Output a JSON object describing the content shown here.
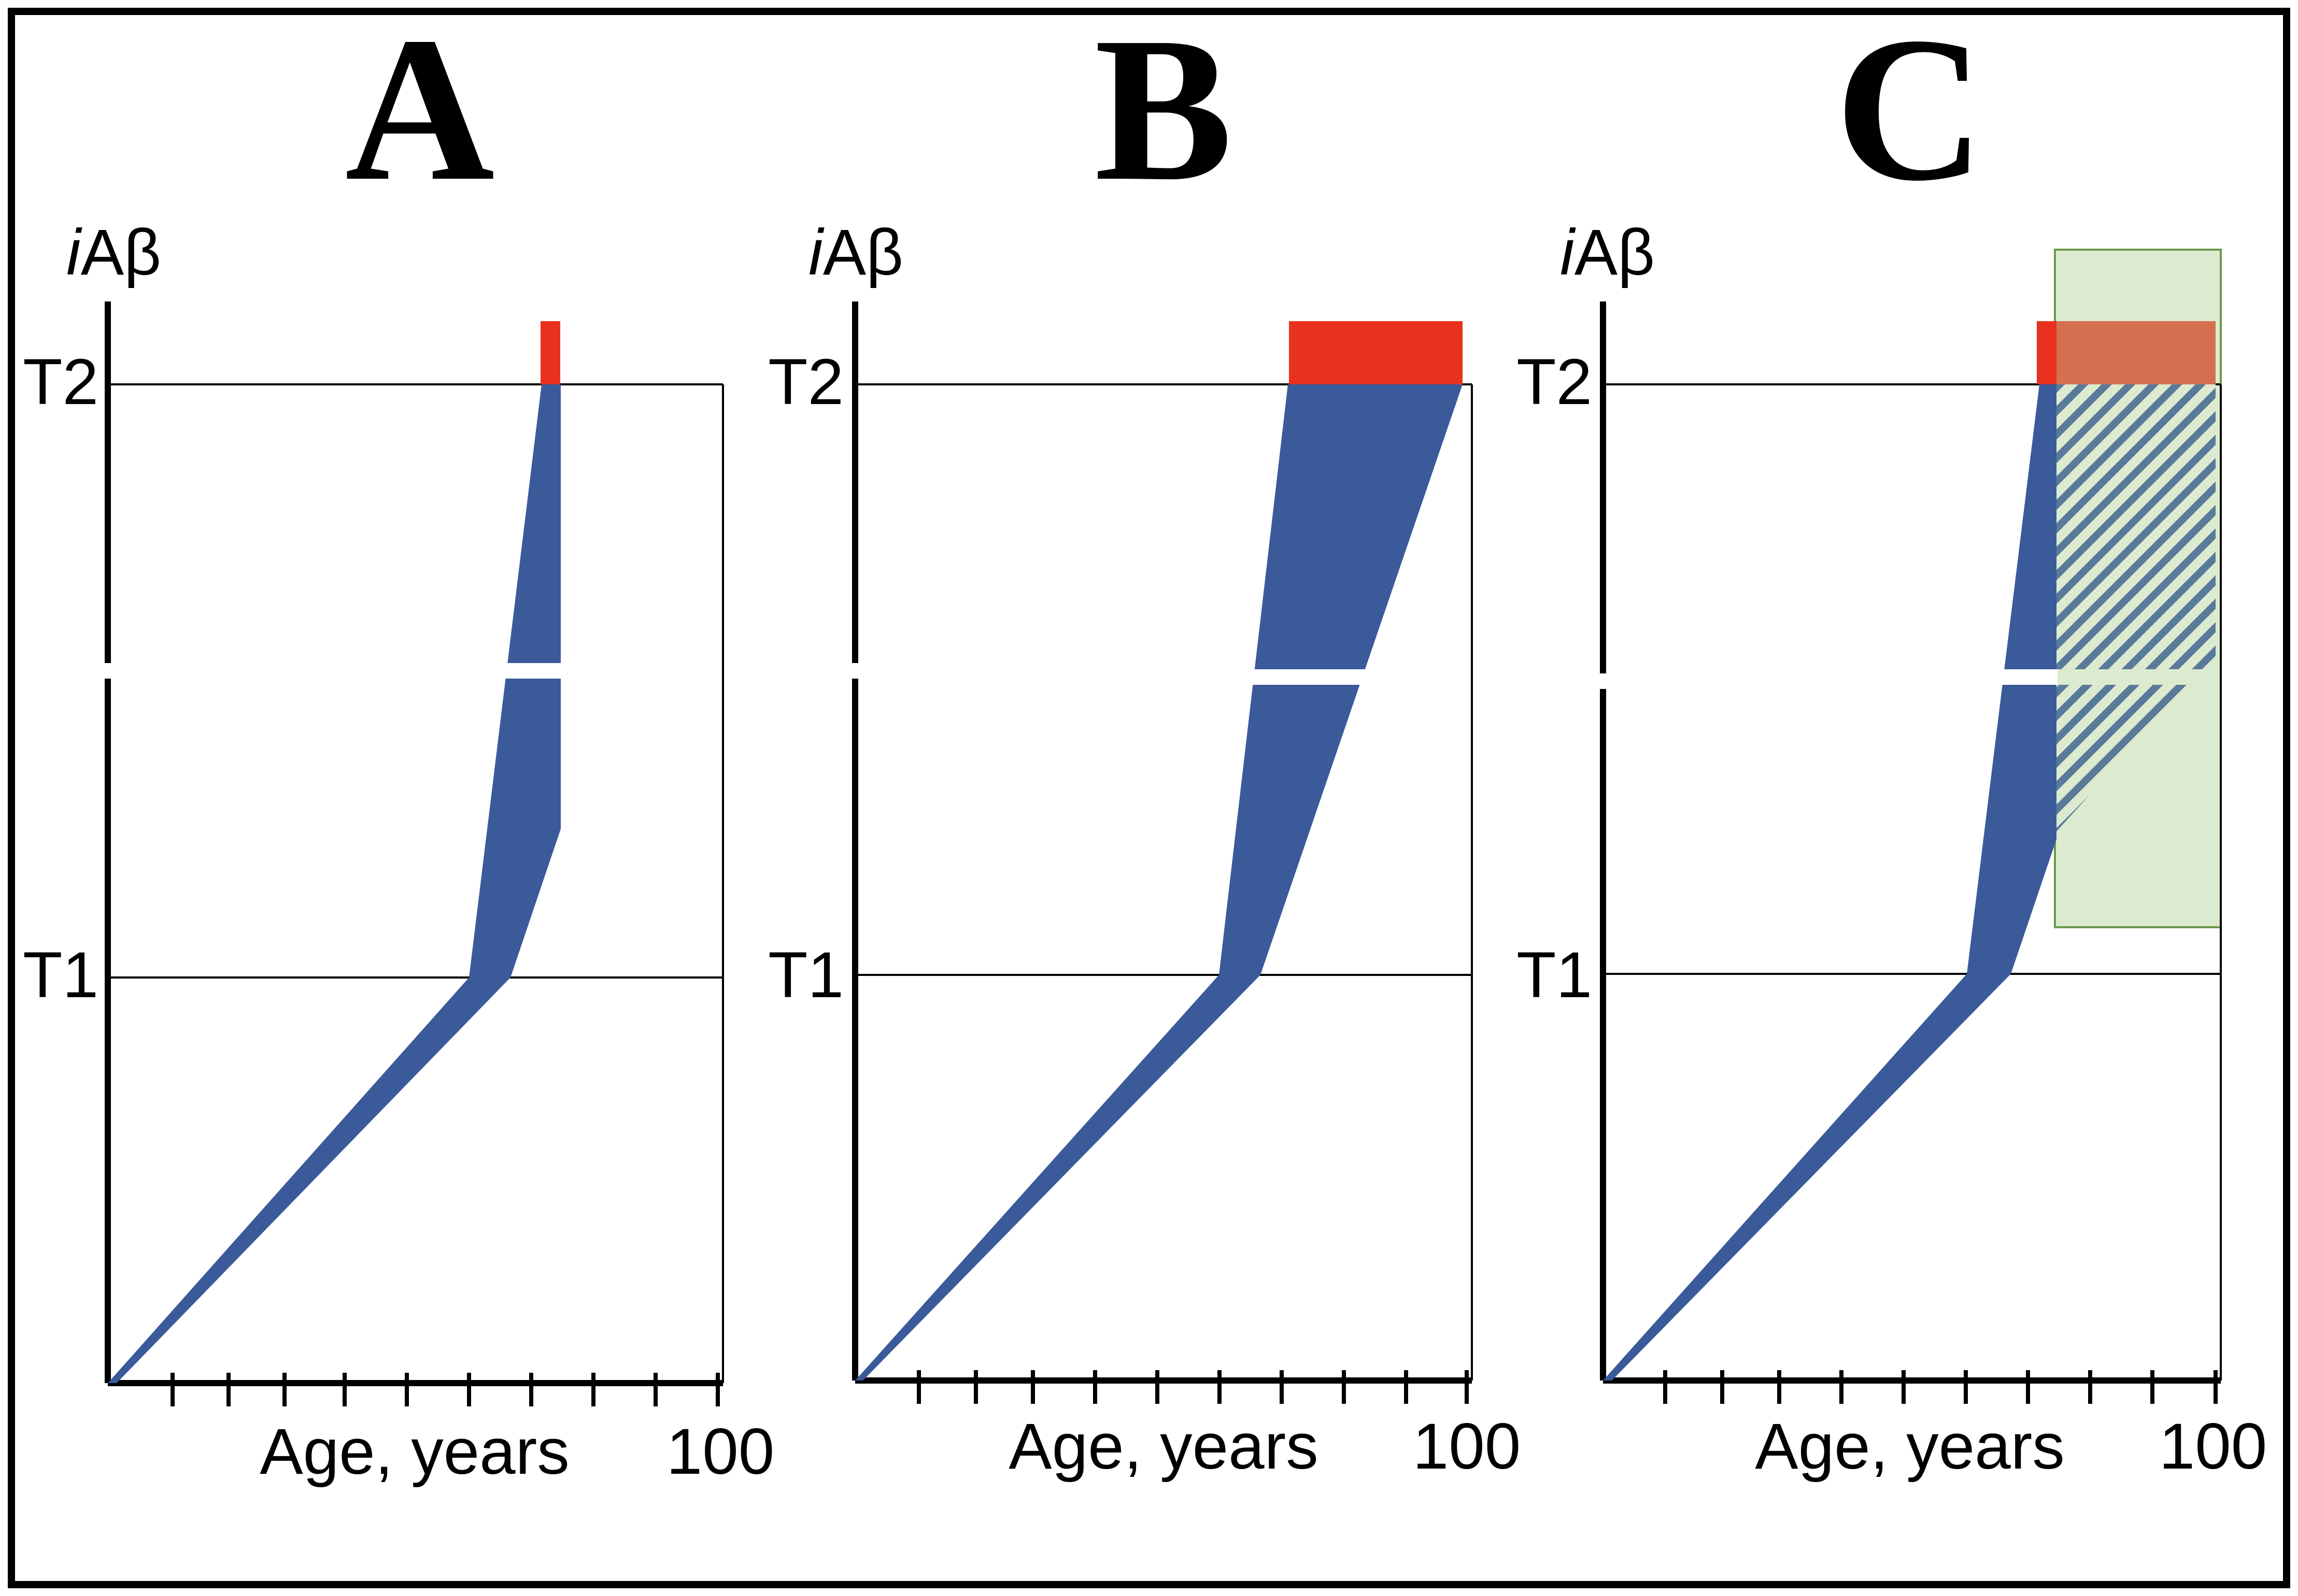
{
  "panels": [
    {
      "letter": "A",
      "y_label_italic": "i",
      "y_label_rest": "Aβ",
      "t1_label": "T1",
      "t2_label": "T2",
      "x_label": "Age, years",
      "x_max_label": "100",
      "has_treatment_window": false
    },
    {
      "letter": "B",
      "y_label_italic": "i",
      "y_label_rest": "Aβ",
      "t1_label": "T1",
      "t2_label": "T2",
      "x_label": "Age, years",
      "x_max_label": "100",
      "has_treatment_window": false
    },
    {
      "letter": "C",
      "y_label_italic": "i",
      "y_label_rest": "Aβ",
      "t1_label": "T1",
      "t2_label": "T2",
      "x_label": "Age, years",
      "x_max_label": "100",
      "has_treatment_window": true
    }
  ],
  "colors": {
    "frame": "#000000",
    "trajectory": "#3a5a9a",
    "disease_bar": "#e8321f",
    "disease_bar_overlap": "#d4704f",
    "treatment_window": "#dcebcf",
    "treatment_window_border": "#6a9a4a",
    "hatch": "#5a7a9a"
  }
}
